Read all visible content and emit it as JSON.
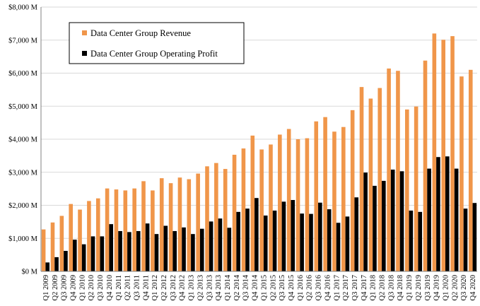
{
  "chart_data": {
    "type": "bar",
    "title": "",
    "xlabel": "",
    "ylabel": "",
    "ylim": [
      0,
      8000
    ],
    "y_ticks": [
      0,
      1000,
      2000,
      3000,
      4000,
      5000,
      6000,
      7000,
      8000
    ],
    "y_tick_labels": [
      "$0 M",
      "$1,000 M",
      "$2,000 M",
      "$3,000 M",
      "$4,000 M",
      "$5,000 M",
      "$6,000 M",
      "$7,000 M",
      "$8,000 M"
    ],
    "grid": true,
    "legend_position": "top-left",
    "categories": [
      "Q1 2009",
      "Q2 2009",
      "Q3 2009",
      "Q4 2009",
      "Q1 2010",
      "Q2 2010",
      "Q3 2010",
      "Q4 2010",
      "Q1 2011",
      "Q2 2011",
      "Q3 2011",
      "Q4 2011",
      "Q1 2012",
      "Q2 2012",
      "Q3 2012",
      "Q4 2012",
      "Q1 2013",
      "Q2 2013",
      "Q3 2013",
      "Q4 2013",
      "Q1 2014",
      "Q2 2014",
      "Q3 2014",
      "Q4 2014",
      "Q1 2015",
      "Q2 2015",
      "Q3 2015",
      "Q4 2015",
      "Q1 2016",
      "Q2 2016",
      "Q3 2016",
      "Q4 2016",
      "Q1 2017",
      "Q2 2017",
      "Q3 2017",
      "Q4 2017",
      "Q1 2018",
      "Q2 2018",
      "Q3 2018",
      "Q4 2018",
      "Q1 2019",
      "Q2 2019",
      "Q3 2019",
      "Q4 2019",
      "Q1 2020",
      "Q2 2020",
      "Q3 2020",
      "Q4 2020"
    ],
    "series": [
      {
        "name": "Data Center Group Revenue",
        "color": "#f0964a",
        "values": [
          1270,
          1480,
          1680,
          2040,
          1870,
          2130,
          2210,
          2510,
          2480,
          2450,
          2510,
          2730,
          2450,
          2820,
          2670,
          2840,
          2790,
          2960,
          3180,
          3280,
          3100,
          3530,
          3720,
          4110,
          3690,
          3840,
          4140,
          4310,
          4000,
          4030,
          4540,
          4670,
          4230,
          4370,
          4880,
          5580,
          5230,
          5550,
          6140,
          6070,
          4900,
          4990,
          6380,
          7200,
          7010,
          7120,
          5900,
          6100
        ]
      },
      {
        "name": "Data Center Group Operating Profit",
        "color": "#000000",
        "values": [
          270,
          430,
          620,
          960,
          820,
          1060,
          1060,
          1430,
          1220,
          1190,
          1220,
          1450,
          1130,
          1380,
          1220,
          1330,
          1130,
          1290,
          1510,
          1600,
          1320,
          1800,
          1900,
          2220,
          1690,
          1840,
          2110,
          2160,
          1750,
          1740,
          2080,
          1880,
          1470,
          1660,
          2240,
          2990,
          2590,
          2740,
          3080,
          3030,
          1840,
          1800,
          3110,
          3460,
          3480,
          3110,
          1900,
          2070
        ]
      }
    ]
  }
}
